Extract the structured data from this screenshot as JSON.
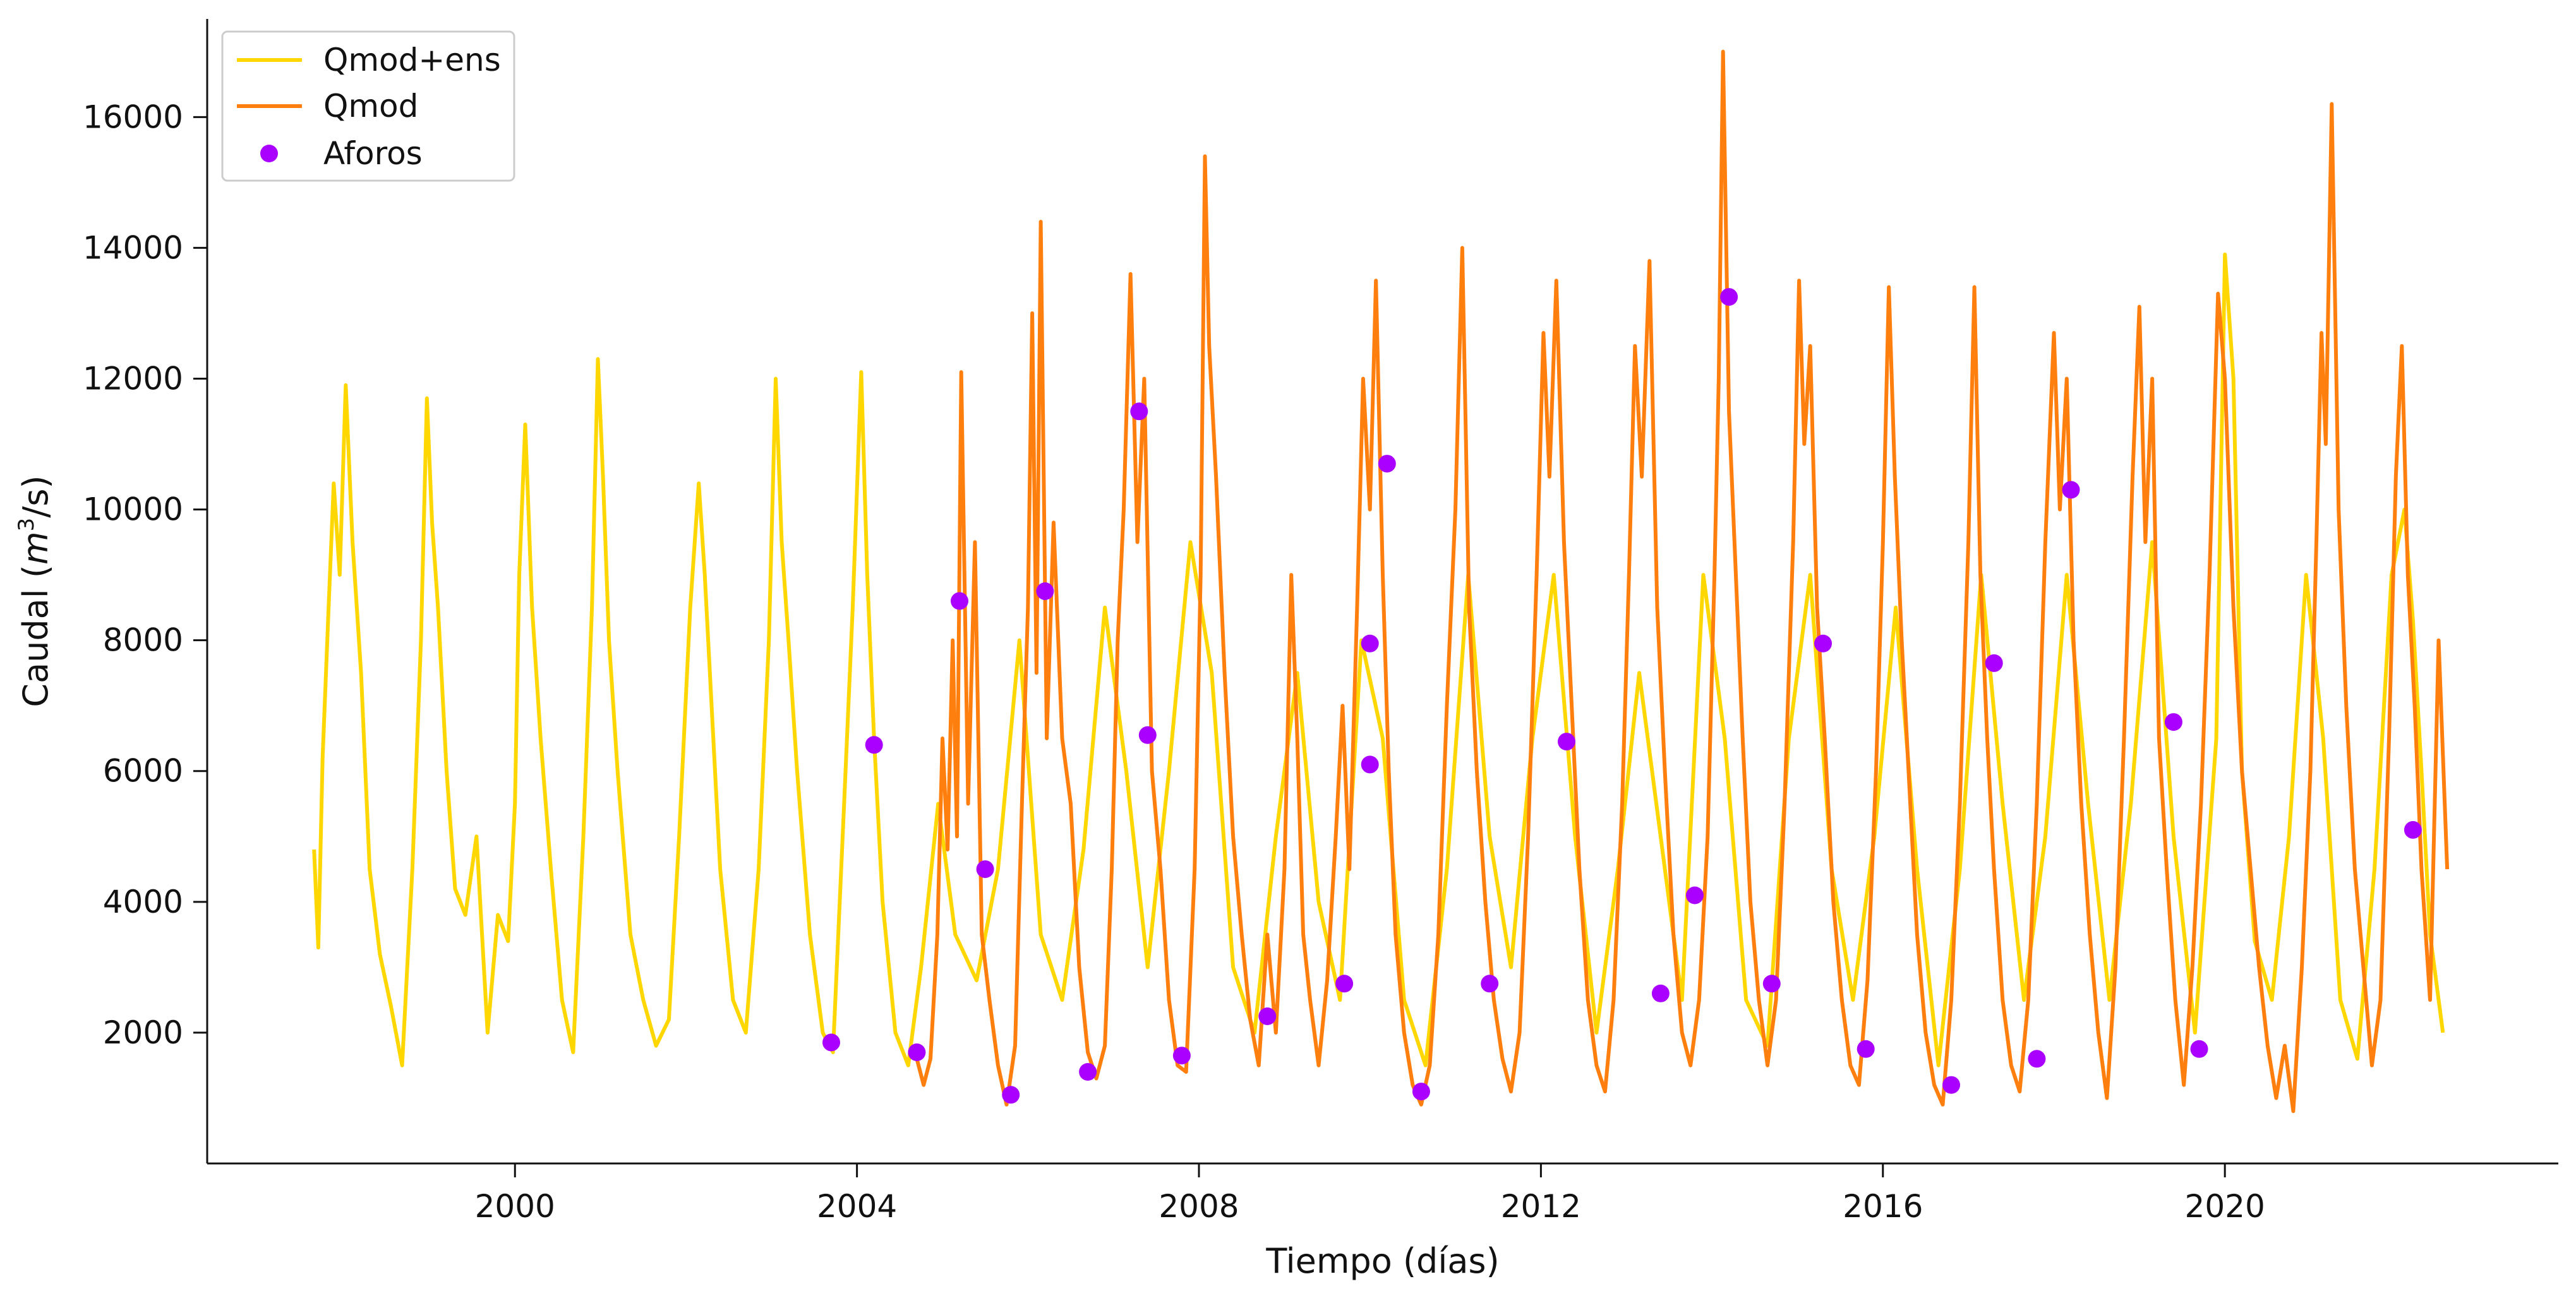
{
  "chart_data": {
    "type": "line",
    "xlabel": "Tiempo (días)",
    "ylabel_prefix": "Caudal (",
    "ylabel_var": "m",
    "ylabel_exp": "3",
    "ylabel_suffix": "/s)",
    "xlim": [
      1996.4,
      2023.9
    ],
    "ylim": [
      0,
      17500
    ],
    "x_ticks": [
      2000,
      2004,
      2008,
      2012,
      2016,
      2020
    ],
    "x_tick_labels": [
      "2000",
      "2004",
      "2008",
      "2012",
      "2016",
      "2020"
    ],
    "y_ticks": [
      2000,
      4000,
      6000,
      8000,
      10000,
      12000,
      14000,
      16000
    ],
    "y_tick_labels": [
      "2000",
      "4000",
      "6000",
      "8000",
      "10000",
      "12000",
      "14000",
      "16000"
    ],
    "grid": false,
    "legend_position": "top-left",
    "series": [
      {
        "name": "Qmod+ens",
        "color": "#FFD700",
        "x": [
          1997.65,
          1997.7,
          1997.75,
          1997.82,
          1997.88,
          1997.95,
          1998.02,
          1998.1,
          1998.2,
          1998.3,
          1998.42,
          1998.55,
          1998.68,
          1998.8,
          1998.9,
          1998.97,
          1999.03,
          1999.1,
          1999.2,
          1999.3,
          1999.42,
          1999.55,
          1999.68,
          1999.8,
          1999.92,
          2000.0,
          2000.05,
          2000.12,
          2000.2,
          2000.3,
          2000.42,
          2000.55,
          2000.68,
          2000.8,
          2000.9,
          2000.97,
          2001.03,
          2001.1,
          2001.2,
          2001.35,
          2001.5,
          2001.65,
          2001.8,
          2001.92,
          2002.05,
          2002.15,
          2002.22,
          2002.3,
          2002.4,
          2002.55,
          2002.7,
          2002.85,
          2002.97,
          2003.05,
          2003.12,
          2003.2,
          2003.3,
          2003.45,
          2003.6,
          2003.72,
          2003.85,
          2003.95,
          2004.05,
          2004.12,
          2004.2,
          2004.3,
          2004.45,
          2004.6,
          2004.75,
          2004.95,
          2005.15,
          2005.4,
          2005.65,
          2005.9,
          2006.15,
          2006.4,
          2006.65,
          2006.9,
          2007.15,
          2007.4,
          2007.65,
          2007.9,
          2008.15,
          2008.4,
          2008.65,
          2008.9,
          2009.15,
          2009.4,
          2009.65,
          2009.9,
          2010.15,
          2010.4,
          2010.65,
          2010.9,
          2011.15,
          2011.4,
          2011.65,
          2011.9,
          2012.15,
          2012.4,
          2012.65,
          2012.9,
          2013.15,
          2013.4,
          2013.65,
          2013.9,
          2014.15,
          2014.4,
          2014.65,
          2014.9,
          2015.15,
          2015.4,
          2015.65,
          2015.9,
          2016.15,
          2016.4,
          2016.65,
          2016.9,
          2017.15,
          2017.4,
          2017.65,
          2017.9,
          2018.15,
          2018.4,
          2018.65,
          2018.9,
          2019.15,
          2019.4,
          2019.65,
          2019.9,
          2020.0,
          2020.1,
          2020.2,
          2020.35,
          2020.55,
          2020.75,
          2020.95,
          2021.15,
          2021.35,
          2021.55,
          2021.75,
          2021.95,
          2022.1,
          2022.2,
          2022.3,
          2022.4,
          2022.55
        ],
        "values": [
          4800,
          3300,
          6200,
          8500,
          10400,
          9000,
          11900,
          9500,
          7500,
          4500,
          3200,
          2400,
          1500,
          4500,
          8000,
          11700,
          9800,
          8500,
          6000,
          4200,
          3800,
          5000,
          2000,
          3800,
          3400,
          5500,
          9000,
          11300,
          8500,
          6500,
          4500,
          2500,
          1700,
          5000,
          8500,
          12300,
          10500,
          8000,
          6000,
          3500,
          2500,
          1800,
          2200,
          5000,
          8500,
          10400,
          9000,
          7000,
          4500,
          2500,
          2000,
          4500,
          8000,
          12000,
          9500,
          8000,
          6000,
          3500,
          2000,
          1700,
          5500,
          8500,
          12100,
          9000,
          6500,
          4000,
          2000,
          1500,
          3000,
          5500,
          3500,
          2800,
          4500,
          8000,
          3500,
          2500,
          4800,
          8500,
          6000,
          3000,
          6000,
          9500,
          7500,
          3000,
          2000,
          5000,
          7500,
          4000,
          2500,
          8000,
          6500,
          2500,
          1500,
          4500,
          9000,
          5000,
          3000,
          6500,
          9000,
          5000,
          2000,
          4500,
          7500,
          5000,
          2500,
          9000,
          6500,
          2500,
          1800,
          6500,
          9000,
          4500,
          2500,
          5000,
          8500,
          4500,
          1500,
          4500,
          9000,
          5500,
          2500,
          5000,
          9000,
          5500,
          2500,
          5500,
          9500,
          5000,
          2000,
          6500,
          13900,
          12000,
          6000,
          3400,
          2500,
          5000,
          9000,
          6500,
          2500,
          1600,
          4500,
          9000,
          10000,
          8300,
          6000,
          3500,
          2000
        ]
      },
      {
        "name": "Qmod",
        "color": "#FF7F0E",
        "x": [
          2004.7,
          2004.78,
          2004.86,
          2004.94,
          2005.0,
          2005.06,
          2005.12,
          2005.17,
          2005.22,
          2005.3,
          2005.38,
          2005.46,
          2005.55,
          2005.65,
          2005.75,
          2005.85,
          2005.93,
          2006.0,
          2006.05,
          2006.1,
          2006.15,
          2006.22,
          2006.3,
          2006.4,
          2006.5,
          2006.6,
          2006.7,
          2006.8,
          2006.9,
          2006.98,
          2007.05,
          2007.12,
          2007.2,
          2007.28,
          2007.36,
          2007.45,
          2007.55,
          2007.65,
          2007.75,
          2007.85,
          2007.95,
          2008.02,
          2008.07,
          2008.12,
          2008.2,
          2008.3,
          2008.4,
          2008.5,
          2008.6,
          2008.7,
          2008.8,
          2008.9,
          2009.0,
          2009.08,
          2009.15,
          2009.22,
          2009.3,
          2009.4,
          2009.5,
          2009.6,
          2009.68,
          2009.76,
          2009.85,
          2009.92,
          2010.0,
          2010.07,
          2010.15,
          2010.22,
          2010.3,
          2010.4,
          2010.5,
          2010.6,
          2010.7,
          2010.8,
          2010.9,
          2011.0,
          2011.08,
          2011.16,
          2011.25,
          2011.35,
          2011.45,
          2011.55,
          2011.65,
          2011.75,
          2011.85,
          2011.95,
          2012.03,
          2012.1,
          2012.18,
          2012.27,
          2012.36,
          2012.45,
          2012.55,
          2012.65,
          2012.75,
          2012.85,
          2012.95,
          2013.03,
          2013.1,
          2013.18,
          2013.27,
          2013.36,
          2013.45,
          2013.55,
          2013.65,
          2013.75,
          2013.85,
          2013.95,
          2014.03,
          2014.08,
          2014.13,
          2014.2,
          2014.28,
          2014.36,
          2014.45,
          2014.55,
          2014.65,
          2014.75,
          2014.85,
          2014.95,
          2015.02,
          2015.08,
          2015.15,
          2015.23,
          2015.32,
          2015.42,
          2015.52,
          2015.62,
          2015.72,
          2015.82,
          2015.92,
          2016.0,
          2016.07,
          2016.14,
          2016.22,
          2016.3,
          2016.4,
          2016.5,
          2016.6,
          2016.7,
          2016.8,
          2016.9,
          2017.0,
          2017.07,
          2017.14,
          2017.22,
          2017.3,
          2017.4,
          2017.5,
          2017.6,
          2017.7,
          2017.8,
          2017.9,
          2018.0,
          2018.07,
          2018.15,
          2018.23,
          2018.32,
          2018.42,
          2018.52,
          2018.62,
          2018.72,
          2018.82,
          2018.92,
          2019.0,
          2019.07,
          2019.15,
          2019.23,
          2019.32,
          2019.42,
          2019.52,
          2019.62,
          2019.72,
          2019.82,
          2019.92,
          2020.0,
          2020.1,
          2020.2,
          2020.3,
          2020.4,
          2020.5,
          2020.6,
          2020.7,
          2020.8,
          2020.9,
          2021.0,
          2021.07,
          2021.13,
          2021.18,
          2021.25,
          2021.33,
          2021.42,
          2021.52,
          2021.62,
          2021.72,
          2021.82,
          2021.92,
          2022.0,
          2022.07,
          2022.14,
          2022.22,
          2022.3,
          2022.4,
          2022.5,
          2022.6
        ],
        "values": [
          1600,
          1200,
          1600,
          3500,
          6500,
          4800,
          8000,
          5000,
          12100,
          5500,
          9500,
          3500,
          2500,
          1500,
          900,
          1800,
          5500,
          8500,
          13000,
          7500,
          14400,
          6500,
          9800,
          6500,
          5500,
          3000,
          1700,
          1300,
          1800,
          4500,
          8000,
          10000,
          13600,
          9500,
          12000,
          6000,
          4500,
          2500,
          1500,
          1400,
          4500,
          9000,
          15400,
          12500,
          10500,
          7500,
          5000,
          3500,
          2200,
          1500,
          3500,
          2000,
          4500,
          9000,
          6500,
          3500,
          2500,
          1500,
          2800,
          5000,
          7000,
          4500,
          8500,
          12000,
          10000,
          13500,
          9000,
          6000,
          3500,
          2000,
          1200,
          900,
          1500,
          3500,
          7000,
          10000,
          14000,
          8500,
          6000,
          4000,
          2500,
          1600,
          1100,
          2000,
          5000,
          9000,
          12700,
          10500,
          13500,
          9500,
          7000,
          4500,
          2500,
          1500,
          1100,
          2500,
          5500,
          9000,
          12500,
          10500,
          13800,
          8500,
          6000,
          3500,
          2000,
          1500,
          2500,
          5000,
          9000,
          12000,
          17000,
          11500,
          9000,
          6500,
          4000,
          2500,
          1500,
          2500,
          5500,
          9500,
          13500,
          11000,
          12500,
          8500,
          6500,
          4000,
          2500,
          1500,
          1200,
          2800,
          6000,
          9500,
          13400,
          10500,
          8000,
          6000,
          3500,
          2000,
          1200,
          900,
          2500,
          5500,
          9500,
          13400,
          9000,
          6500,
          4500,
          2500,
          1500,
          1100,
          2500,
          5500,
          9500,
          12700,
          10000,
          12000,
          8000,
          5500,
          3500,
          2000,
          1000,
          3000,
          6500,
          10500,
          13100,
          9500,
          12000,
          6500,
          4500,
          2500,
          1200,
          3000,
          5500,
          9000,
          13300,
          12000,
          8500,
          6000,
          4500,
          3000,
          1800,
          1000,
          1800,
          800,
          3000,
          6000,
          9500,
          12700,
          11000,
          16200,
          10000,
          7000,
          4500,
          3000,
          1500,
          2500,
          6500,
          10500,
          12500,
          9000,
          7000,
          4500,
          2500,
          8000,
          4500
        ]
      },
      {
        "name": "Aforos",
        "color": "#AA00FF",
        "x": [
          2003.7,
          2004.2,
          2004.7,
          2005.2,
          2005.5,
          2005.8,
          2006.2,
          2006.7,
          2007.3,
          2007.4,
          2007.8,
          2008.8,
          2009.7,
          2010.0,
          2010.0,
          2010.2,
          2010.6,
          2011.4,
          2012.3,
          2013.4,
          2013.8,
          2014.2,
          2014.7,
          2015.3,
          2015.8,
          2016.8,
          2017.3,
          2017.8,
          2018.2,
          2019.4,
          2019.7,
          2022.2
        ],
        "values": [
          1850,
          6400,
          1700,
          8600,
          4500,
          1050,
          8750,
          1400,
          11500,
          6550,
          1650,
          2250,
          2750,
          6100,
          7950,
          10700,
          1100,
          2750,
          6450,
          2600,
          4100,
          13250,
          2750,
          7950,
          1750,
          1200,
          7650,
          1600,
          10300,
          6750,
          1750,
          5100
        ]
      }
    ]
  }
}
